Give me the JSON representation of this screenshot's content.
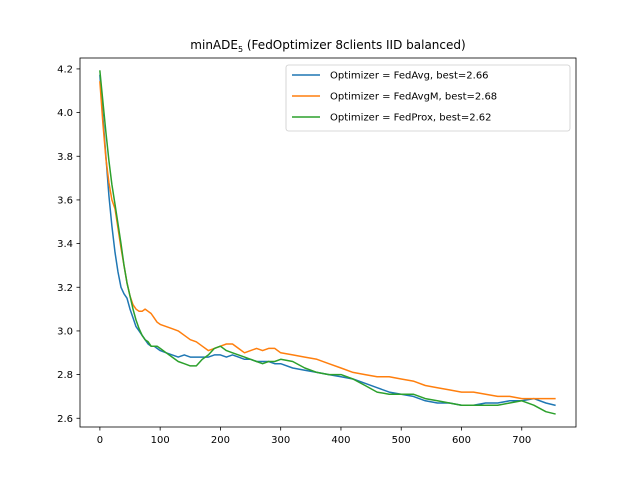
{
  "chart_data": {
    "type": "line",
    "title": "minADE",
    "title_sub": "5",
    "title_rest": " (FedOptimizer 8clients IID balanced)",
    "xlabel": "",
    "ylabel": "",
    "xlim": [
      -33,
      790
    ],
    "ylim": [
      2.56,
      4.25
    ],
    "xticks": [
      0,
      100,
      200,
      300,
      400,
      500,
      600,
      700
    ],
    "yticks": [
      2.6,
      2.8,
      3.0,
      3.2,
      3.4,
      3.6,
      3.8,
      4.0,
      4.2
    ],
    "ytick_labels": [
      "2.6",
      "2.8",
      "3.0",
      "3.2",
      "3.4",
      "3.6",
      "3.8",
      "4.0",
      "4.2"
    ],
    "grid": false,
    "legend_position": "top-right",
    "series": [
      {
        "name": "Optimizer = FedAvg, best=2.66",
        "color": "#1f77b4",
        "x": [
          0,
          5,
          10,
          15,
          20,
          25,
          30,
          35,
          40,
          45,
          50,
          55,
          60,
          65,
          70,
          75,
          80,
          85,
          90,
          95,
          100,
          110,
          120,
          130,
          140,
          150,
          160,
          170,
          180,
          190,
          200,
          210,
          220,
          230,
          240,
          250,
          260,
          270,
          280,
          290,
          300,
          320,
          340,
          360,
          380,
          400,
          420,
          440,
          460,
          480,
          500,
          520,
          540,
          560,
          580,
          600,
          620,
          640,
          660,
          680,
          700,
          720,
          740,
          755
        ],
        "y": [
          4.17,
          3.98,
          3.8,
          3.62,
          3.48,
          3.36,
          3.27,
          3.2,
          3.17,
          3.15,
          3.1,
          3.06,
          3.02,
          3.0,
          2.98,
          2.96,
          2.94,
          2.93,
          2.93,
          2.92,
          2.91,
          2.9,
          2.89,
          2.88,
          2.89,
          2.88,
          2.88,
          2.88,
          2.88,
          2.89,
          2.89,
          2.88,
          2.89,
          2.88,
          2.87,
          2.87,
          2.86,
          2.86,
          2.86,
          2.85,
          2.85,
          2.83,
          2.82,
          2.81,
          2.8,
          2.79,
          2.78,
          2.76,
          2.74,
          2.72,
          2.71,
          2.7,
          2.68,
          2.67,
          2.67,
          2.66,
          2.66,
          2.67,
          2.67,
          2.68,
          2.68,
          2.69,
          2.67,
          2.66
        ]
      },
      {
        "name": "Optimizer = FedAvgM, best=2.68",
        "color": "#ff7f0e",
        "x": [
          0,
          5,
          10,
          15,
          20,
          25,
          30,
          35,
          40,
          45,
          50,
          55,
          60,
          65,
          70,
          75,
          80,
          85,
          90,
          95,
          100,
          110,
          120,
          130,
          140,
          150,
          160,
          170,
          180,
          190,
          200,
          210,
          220,
          230,
          240,
          250,
          260,
          270,
          280,
          290,
          300,
          320,
          340,
          360,
          380,
          400,
          420,
          440,
          460,
          480,
          500,
          520,
          540,
          560,
          580,
          600,
          620,
          640,
          660,
          680,
          700,
          720,
          740,
          755
        ],
        "y": [
          4.14,
          3.95,
          3.79,
          3.68,
          3.6,
          3.56,
          3.47,
          3.38,
          3.3,
          3.22,
          3.16,
          3.12,
          3.1,
          3.09,
          3.09,
          3.1,
          3.09,
          3.08,
          3.06,
          3.04,
          3.03,
          3.02,
          3.01,
          3.0,
          2.98,
          2.96,
          2.95,
          2.93,
          2.91,
          2.92,
          2.93,
          2.94,
          2.94,
          2.92,
          2.9,
          2.91,
          2.92,
          2.91,
          2.92,
          2.92,
          2.9,
          2.89,
          2.88,
          2.87,
          2.85,
          2.83,
          2.81,
          2.8,
          2.79,
          2.79,
          2.78,
          2.77,
          2.75,
          2.74,
          2.73,
          2.72,
          2.72,
          2.71,
          2.7,
          2.7,
          2.69,
          2.69,
          2.69,
          2.69
        ]
      },
      {
        "name": "Optimizer = FedProx, best=2.62",
        "color": "#2ca02c",
        "x": [
          0,
          5,
          10,
          15,
          20,
          25,
          30,
          35,
          40,
          45,
          50,
          55,
          60,
          65,
          70,
          75,
          80,
          85,
          90,
          95,
          100,
          110,
          120,
          130,
          140,
          150,
          160,
          170,
          180,
          190,
          200,
          210,
          220,
          230,
          240,
          250,
          260,
          270,
          280,
          290,
          300,
          320,
          340,
          360,
          380,
          400,
          420,
          440,
          460,
          480,
          500,
          520,
          540,
          560,
          580,
          600,
          620,
          640,
          660,
          680,
          700,
          720,
          740,
          755
        ],
        "y": [
          4.19,
          4.05,
          3.91,
          3.78,
          3.67,
          3.58,
          3.49,
          3.4,
          3.3,
          3.22,
          3.16,
          3.1,
          3.05,
          3.01,
          2.98,
          2.96,
          2.95,
          2.93,
          2.93,
          2.93,
          2.92,
          2.9,
          2.88,
          2.86,
          2.85,
          2.84,
          2.84,
          2.87,
          2.89,
          2.92,
          2.93,
          2.91,
          2.9,
          2.89,
          2.88,
          2.87,
          2.86,
          2.85,
          2.86,
          2.86,
          2.87,
          2.86,
          2.83,
          2.81,
          2.8,
          2.8,
          2.78,
          2.75,
          2.72,
          2.71,
          2.71,
          2.71,
          2.69,
          2.68,
          2.67,
          2.66,
          2.66,
          2.66,
          2.66,
          2.67,
          2.68,
          2.66,
          2.63,
          2.62
        ]
      }
    ]
  }
}
